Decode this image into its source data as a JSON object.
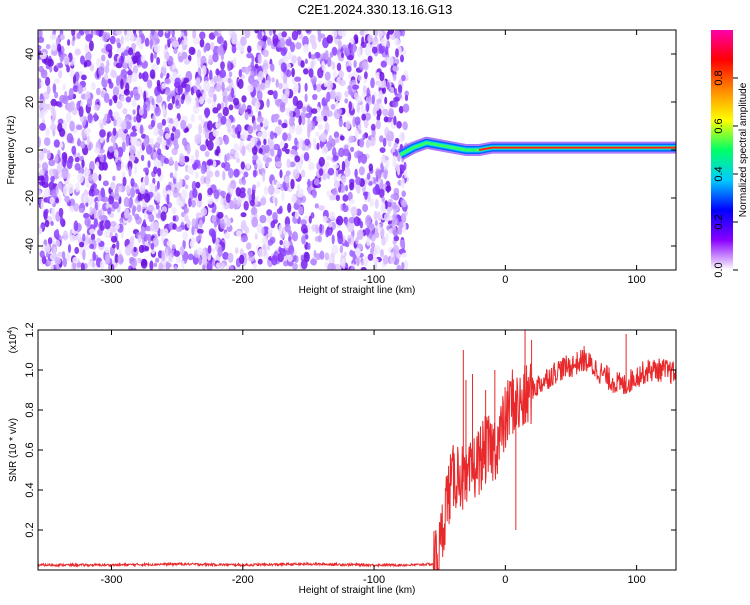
{
  "title": "C2E1.2024.330.13.16.G13",
  "chart_data": [
    {
      "type": "heatmap",
      "xlabel": "Height of straight line (km)",
      "ylabel": "Frequency (Hz)",
      "xlim": [
        -356,
        130
      ],
      "ylim": [
        -50,
        50
      ],
      "xticks": [
        "-300",
        "-200",
        "-100",
        "0",
        "100"
      ],
      "xtick_values": [
        -300,
        -200,
        -100,
        0,
        100
      ],
      "yticks": [
        "-40",
        "-20",
        "0",
        "20",
        "40"
      ],
      "ytick_values": [
        -40,
        -20,
        0,
        20,
        40
      ],
      "noise_region_x": [
        -356,
        -75
      ],
      "signal_track": {
        "x": [
          -80,
          -70,
          -60,
          -50,
          -40,
          -30,
          -20,
          -10,
          0,
          20,
          40,
          60,
          80,
          100,
          130
        ],
        "y": [
          -2,
          1,
          3,
          2,
          1,
          0,
          0,
          1,
          1,
          1,
          1,
          1,
          1,
          1,
          1
        ]
      },
      "colorbar": {
        "label": "Normalized spectral amplitude",
        "ticks": [
          "0.0",
          "0.2",
          "0.4",
          "0.6",
          "0.8"
        ],
        "tick_values": [
          0.0,
          0.2,
          0.4,
          0.6,
          0.8
        ],
        "range": [
          0,
          1
        ],
        "colors": [
          "#ffffff",
          "#8800ff",
          "#0000ff",
          "#00ccff",
          "#00ff66",
          "#ffff00",
          "#ff8800",
          "#ff0000",
          "#ff00aa"
        ]
      },
      "grid": false
    },
    {
      "type": "line",
      "xlabel": "Height of straight line (km)",
      "ylabel": "SNR (10 * v/v)",
      "y_multiplier_label": "(x10",
      "y_multiplier_exp": "4",
      "y_multiplier_close": ")",
      "xlim": [
        -356,
        130
      ],
      "ylim": [
        0,
        1.2
      ],
      "xticks": [
        "-300",
        "-200",
        "-100",
        "0",
        "100"
      ],
      "xtick_values": [
        -300,
        -200,
        -100,
        0,
        100
      ],
      "yticks": [
        "0.2",
        "0.4",
        "0.6",
        "0.8",
        "1.0",
        "1.2"
      ],
      "ytick_values": [
        0.2,
        0.4,
        0.6,
        0.8,
        1.0,
        1.2
      ],
      "color": "#e8282a",
      "series": [
        {
          "x": [
            -356,
            -300,
            -250,
            -200,
            -150,
            -100,
            -70,
            -55,
            -50,
            -45,
            -40,
            -35,
            -30,
            -25,
            -20,
            -15,
            -10,
            -5,
            0,
            5,
            10,
            15,
            20,
            30,
            40,
            50,
            60,
            70,
            80,
            90,
            100,
            110,
            120,
            130
          ],
          "y": [
            0.025,
            0.025,
            0.03,
            0.025,
            0.03,
            0.025,
            0.025,
            0.03,
            0.1,
            0.35,
            0.45,
            0.5,
            0.4,
            0.5,
            0.55,
            0.6,
            0.6,
            0.65,
            0.75,
            0.85,
            0.82,
            0.85,
            0.9,
            0.95,
            1.0,
            1.02,
            1.05,
            1.0,
            0.95,
            0.92,
            0.97,
            1.0,
            1.0,
            0.98
          ]
        }
      ],
      "grid": false
    }
  ]
}
